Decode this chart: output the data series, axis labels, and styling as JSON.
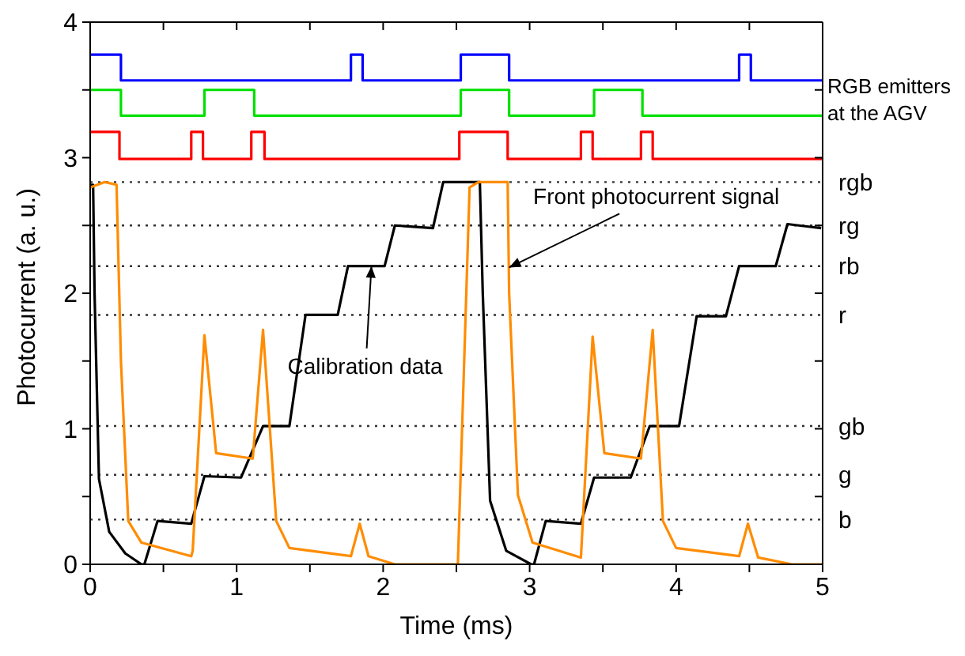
{
  "chart_data": {
    "type": "line",
    "xlabel": "Time (ms)",
    "ylabel": "Photocurrent (a. u.)",
    "xlim": [
      0,
      5
    ],
    "xticks": [
      0,
      {
        "value": 0.5,
        "label": null
      },
      1,
      {
        "value": 1.5,
        "label": null
      },
      2,
      {
        "value": 2.5,
        "label": null
      },
      3,
      {
        "value": 3.5,
        "label": null
      },
      4,
      {
        "value": 4.5,
        "label": null
      },
      5
    ],
    "ylim": [
      0,
      4
    ],
    "yticks": [
      0,
      {
        "value": 0.5,
        "label": null
      },
      1,
      {
        "value": 1.5,
        "label": null
      },
      2,
      {
        "value": 2.5,
        "label": null
      },
      3,
      {
        "value": 3.5,
        "label": null
      },
      4
    ],
    "legend": false,
    "line_style": "solid",
    "marker": "none",
    "series": [
      {
        "type": "step",
        "color": "#0000ff",
        "x": [
          0,
          0.21,
          1.78,
          1.86,
          2.53,
          2.86,
          4.43,
          4.51,
          5
        ],
        "values": [
          3.76,
          3.57,
          3.76,
          3.57,
          3.76,
          3.57,
          3.76,
          3.57,
          3.57
        ]
      },
      {
        "type": "step",
        "color": "#00e000",
        "x": [
          0,
          0.21,
          0.78,
          1.12,
          2.53,
          2.86,
          3.44,
          3.77,
          5
        ],
        "values": [
          3.5,
          3.31,
          3.5,
          3.31,
          3.5,
          3.31,
          3.5,
          3.31,
          3.31
        ]
      },
      {
        "type": "step",
        "color": "#ff0000",
        "x": [
          0,
          0.2,
          0.69,
          0.77,
          1.1,
          1.19,
          2.52,
          2.85,
          3.35,
          3.43,
          3.76,
          3.84,
          5
        ],
        "values": [
          3.19,
          2.99,
          3.19,
          2.99,
          3.19,
          2.99,
          3.19,
          2.99,
          3.19,
          2.99,
          3.19,
          2.99,
          2.99
        ]
      },
      {
        "color": "#000000",
        "x": [
          0,
          0.02,
          0.03,
          0.06,
          0.13,
          0.24,
          0.35,
          0.37,
          0.46,
          0.69,
          0.78,
          1.03,
          1.18,
          1.36,
          1.47,
          1.69,
          1.76,
          2.01,
          2.08,
          2.34,
          2.41,
          2.66,
          2.68,
          2.73,
          2.84,
          3.01,
          3.03,
          3.11,
          3.35,
          3.44,
          3.69,
          3.82,
          4.02,
          4.14,
          4.34,
          4.43,
          4.68,
          4.76,
          4.99
        ],
        "values": [
          2.8,
          2.8,
          2.0,
          0.63,
          0.24,
          0.08,
          0.0,
          0.0,
          0.32,
          0.3,
          0.65,
          0.64,
          1.02,
          1.02,
          1.84,
          1.84,
          2.2,
          2.2,
          2.5,
          2.48,
          2.82,
          2.82,
          2.0,
          0.47,
          0.1,
          0.0,
          0.0,
          0.32,
          0.3,
          0.64,
          0.64,
          1.02,
          1.02,
          1.83,
          1.83,
          2.2,
          2.2,
          2.51,
          2.48
        ]
      },
      {
        "color": "#ff8c00",
        "x": [
          0,
          0.1,
          0.18,
          0.21,
          0.26,
          0.35,
          0.69,
          0.7,
          0.78,
          0.86,
          1.11,
          1.18,
          1.27,
          1.36,
          1.78,
          1.84,
          1.9,
          2.08,
          2.51,
          2.59,
          2.65,
          2.85,
          2.86,
          2.92,
          3.02,
          3.35,
          3.43,
          3.51,
          3.76,
          3.84,
          3.91,
          4.0,
          4.43,
          4.49,
          4.56,
          4.79,
          5
        ],
        "values": [
          2.78,
          2.82,
          2.8,
          1.5,
          0.32,
          0.16,
          0.06,
          0.1,
          1.69,
          0.82,
          0.78,
          1.73,
          0.32,
          0.12,
          0.06,
          0.3,
          0.06,
          0.0,
          0.0,
          2.78,
          2.82,
          2.82,
          2.0,
          0.51,
          0.16,
          0.05,
          1.68,
          0.82,
          0.78,
          1.73,
          0.32,
          0.12,
          0.06,
          0.3,
          0.05,
          0.0,
          0.0
        ]
      }
    ],
    "ref_lines": [
      {
        "axis": "y",
        "value": 2.82,
        "label": "rgb",
        "color": "#333333",
        "line_style": "dotted"
      },
      {
        "axis": "y",
        "value": 2.5,
        "label": "rg",
        "color": "#333333",
        "line_style": "dotted"
      },
      {
        "axis": "y",
        "value": 2.2,
        "label": "rb",
        "color": "#333333",
        "line_style": "dotted"
      },
      {
        "axis": "y",
        "value": 1.84,
        "label": "r",
        "color": "#333333",
        "line_style": "dotted"
      },
      {
        "axis": "y",
        "value": 1.02,
        "label": "gb",
        "color": "#333333",
        "line_style": "dotted"
      },
      {
        "axis": "y",
        "value": 0.66,
        "label": "g",
        "color": "#333333",
        "line_style": "dotted"
      },
      {
        "axis": "y",
        "value": 0.33,
        "label": "b",
        "color": "#333333",
        "line_style": "dotted"
      }
    ],
    "annotations": [
      {
        "text": "Calibration data",
        "x": 1.92,
        "y": 2.2
      },
      {
        "text": "Front photocurrent signal",
        "x": 2.86,
        "y": 2.19
      },
      "RGB emitters at the AGV"
    ]
  }
}
